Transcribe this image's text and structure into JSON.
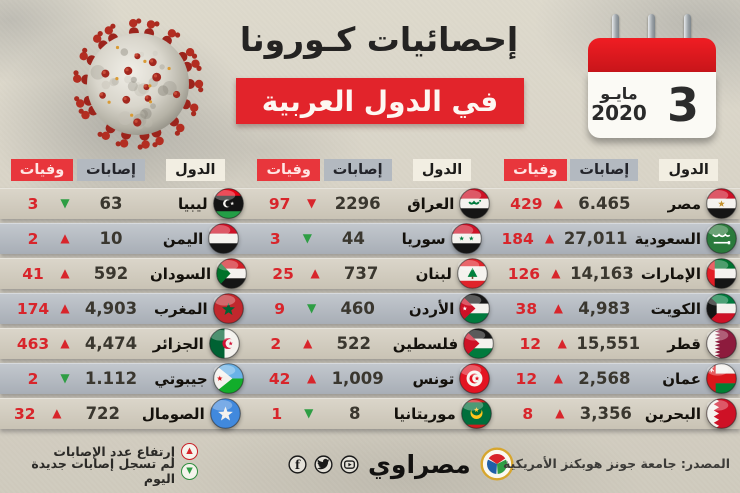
{
  "header": {
    "title_line1": "إحصائيات كـورونا",
    "title_line2": "في الدول العربية",
    "calendar": {
      "month": "مايـو",
      "year": "2020",
      "day": "3"
    }
  },
  "chart_data": {
    "type": "table",
    "title": "إحصائيات كورونا في الدول العربية",
    "date_label": "3 مايو 2020",
    "headers": {
      "country": "الدول",
      "cases": "إصابات",
      "deaths": "وفيات"
    },
    "column_groups": [
      {
        "position": "right",
        "rows": [
          {
            "country": "مصر",
            "flag": "egypt",
            "cases": "6.465",
            "cases_trend": "up-red",
            "deaths": "429"
          },
          {
            "country": "السعودية",
            "flag": "saudi-arabia",
            "cases": "27,011",
            "cases_trend": "up-red",
            "deaths": "184"
          },
          {
            "country": "الإمارات",
            "flag": "uae",
            "cases": "14,163",
            "cases_trend": "up-red",
            "deaths": "126"
          },
          {
            "country": "الكويت",
            "flag": "kuwait",
            "cases": "4,983",
            "cases_trend": "up-red",
            "deaths": "38"
          },
          {
            "country": "قطر",
            "flag": "qatar",
            "cases": "15,551",
            "cases_trend": "up-red",
            "deaths": "12"
          },
          {
            "country": "عمان",
            "flag": "oman",
            "cases": "2,568",
            "cases_trend": "up-red",
            "deaths": "12"
          },
          {
            "country": "البحرين",
            "flag": "bahrain",
            "cases": "3,356",
            "cases_trend": "up-red",
            "deaths": "8"
          }
        ]
      },
      {
        "position": "middle",
        "rows": [
          {
            "country": "العراق",
            "flag": "iraq",
            "cases": "2296",
            "cases_trend": "down-red",
            "deaths": "97"
          },
          {
            "country": "سوريا",
            "flag": "syria",
            "cases": "44",
            "cases_trend": "down-green",
            "deaths": "3"
          },
          {
            "country": "لبنان",
            "flag": "lebanon",
            "cases": "737",
            "cases_trend": "up-red",
            "deaths": "25"
          },
          {
            "country": "الأردن",
            "flag": "jordan",
            "cases": "460",
            "cases_trend": "down-green",
            "deaths": "9"
          },
          {
            "country": "فلسطين",
            "flag": "palestine",
            "cases": "522",
            "cases_trend": "up-red",
            "deaths": "2"
          },
          {
            "country": "تونس",
            "flag": "tunisia",
            "cases": "1,009",
            "cases_trend": "up-red",
            "deaths": "42"
          },
          {
            "country": "موريتانيا",
            "flag": "mauritania",
            "cases": "8",
            "cases_trend": "down-green",
            "deaths": "1"
          }
        ]
      },
      {
        "position": "left",
        "rows": [
          {
            "country": "ليبيا",
            "flag": "libya",
            "cases": "63",
            "cases_trend": "down-green",
            "deaths": "3"
          },
          {
            "country": "اليمن",
            "flag": "yemen",
            "cases": "10",
            "cases_trend": "up-red",
            "deaths": "2"
          },
          {
            "country": "السودان",
            "flag": "sudan",
            "cases": "592",
            "cases_trend": "up-red",
            "deaths": "41"
          },
          {
            "country": "المغرب",
            "flag": "morocco",
            "cases": "4,903",
            "cases_trend": "up-red",
            "deaths": "174"
          },
          {
            "country": "الجزائر",
            "flag": "algeria",
            "cases": "4,474",
            "cases_trend": "up-red",
            "deaths": "463"
          },
          {
            "country": "جيبوتي",
            "flag": "djibouti",
            "cases": "1.112",
            "cases_trend": "down-green",
            "deaths": "2"
          },
          {
            "country": "الصومال",
            "flag": "somalia",
            "cases": "722",
            "cases_trend": "up-red",
            "deaths": "32"
          }
        ]
      }
    ]
  },
  "legend": [
    {
      "trend": "up-red",
      "label": "إرتفاع عدد الإصابات"
    },
    {
      "trend": "down-green",
      "label": "لم تسجل إصابات جديدة اليوم"
    }
  ],
  "footer": {
    "brand": "مصراوي",
    "social": [
      "facebook",
      "twitter",
      "youtube"
    ],
    "source": "المصدر: جامعة جونز هوبكنز الأمريكية"
  },
  "colors": {
    "accent_red": "#e2242b",
    "deaths_red": "#d8252b",
    "trend_green": "#2e9e44",
    "strip_light": "#d2ccbf",
    "strip_dark": "#b4bac2"
  }
}
